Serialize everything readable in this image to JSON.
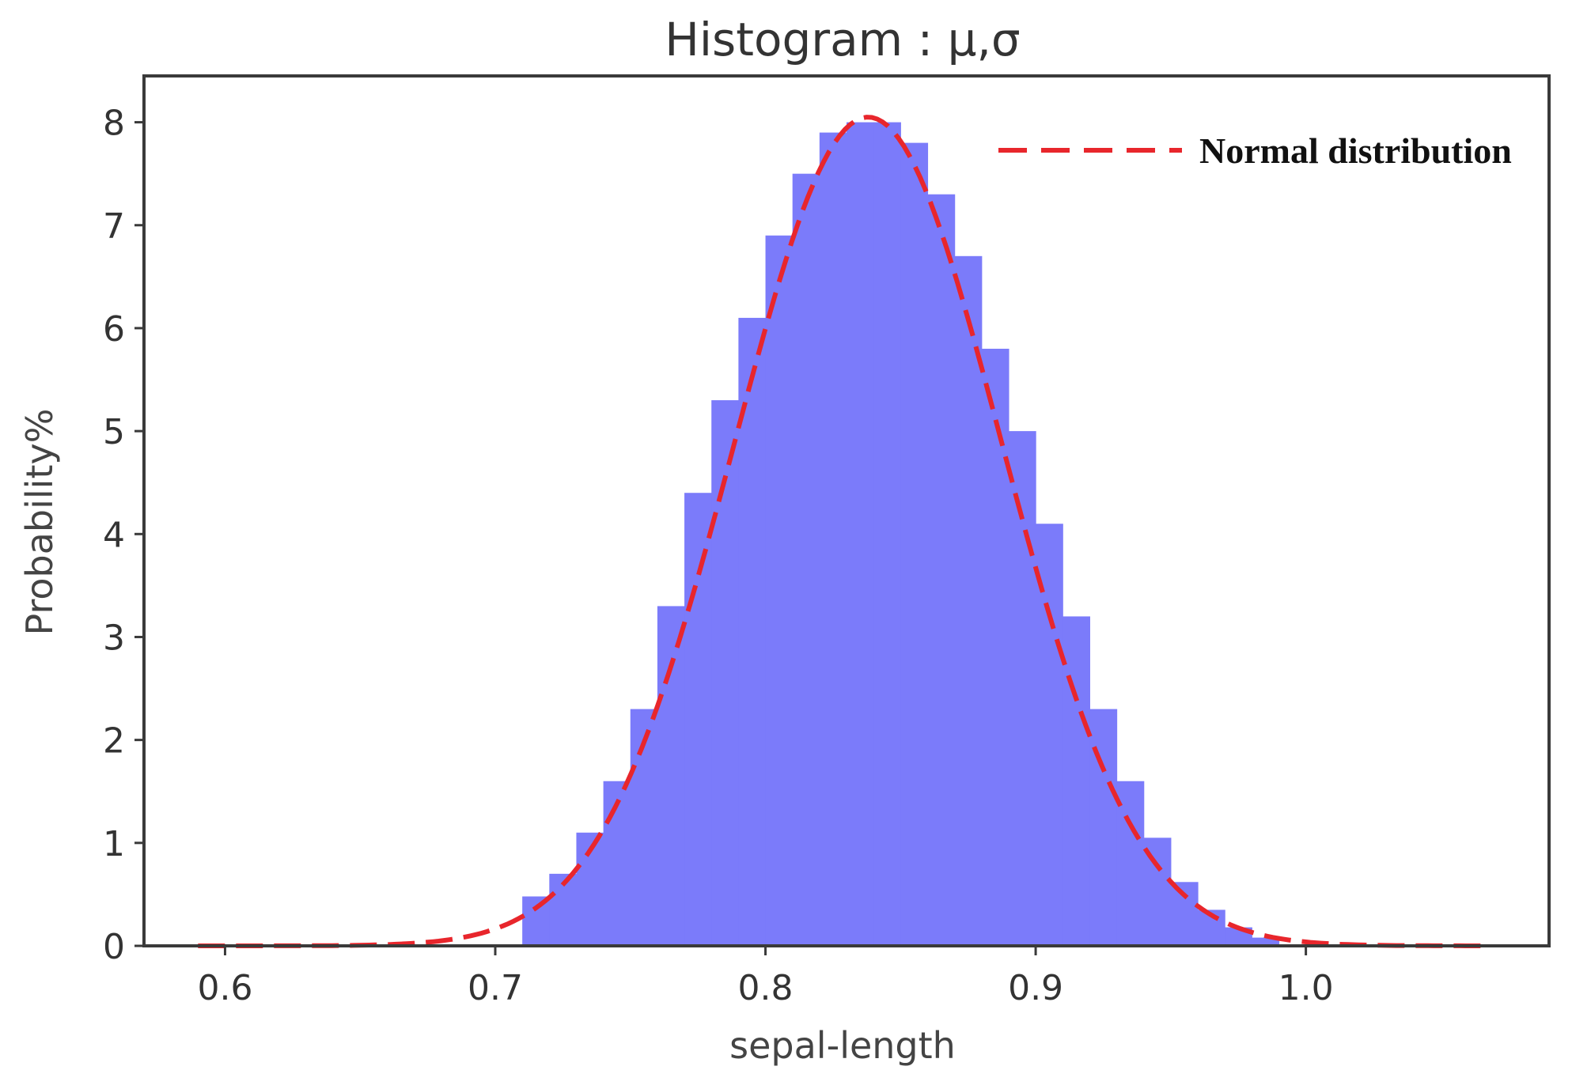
{
  "chart_data": {
    "type": "bar",
    "title": "Histogram : μ,σ",
    "xlabel": "sepal-length",
    "ylabel": "Probability%",
    "xlim": [
      0.57,
      1.09
    ],
    "ylim": [
      0,
      8.45
    ],
    "x_ticks": [
      0.6,
      0.7,
      0.8,
      0.9,
      1.0
    ],
    "x_tick_labels": [
      "0.6",
      "0.7",
      "0.8",
      "0.9",
      "1.0"
    ],
    "y_ticks": [
      0,
      1,
      2,
      3,
      4,
      5,
      6,
      7,
      8
    ],
    "y_tick_labels": [
      "0",
      "1",
      "2",
      "3",
      "4",
      "5",
      "6",
      "7",
      "8"
    ],
    "grid": false,
    "legend_position": "top-right",
    "histogram": {
      "color": "#7b7bfa",
      "bin_edges": [
        0.71,
        0.72,
        0.73,
        0.74,
        0.75,
        0.76,
        0.77,
        0.78,
        0.79,
        0.8,
        0.81,
        0.82,
        0.83,
        0.84,
        0.85,
        0.86,
        0.87,
        0.88,
        0.89,
        0.9,
        0.91,
        0.92,
        0.93,
        0.94,
        0.95,
        0.96,
        0.97,
        0.98,
        0.99
      ],
      "values": [
        0.48,
        0.7,
        1.1,
        1.6,
        2.3,
        3.3,
        4.4,
        5.3,
        6.1,
        6.9,
        7.5,
        7.9,
        8.0,
        8.0,
        7.8,
        7.3,
        6.7,
        5.8,
        5.0,
        4.1,
        3.2,
        2.3,
        1.6,
        1.05,
        0.62,
        0.35,
        0.18,
        0.08
      ]
    },
    "series": [
      {
        "name": "Normal distribution",
        "type": "line",
        "style": "dashed",
        "color": "#e8262c",
        "mean": 0.838,
        "std": 0.0495,
        "peak": 8.05,
        "x_range": [
          0.59,
          1.065
        ]
      }
    ]
  }
}
